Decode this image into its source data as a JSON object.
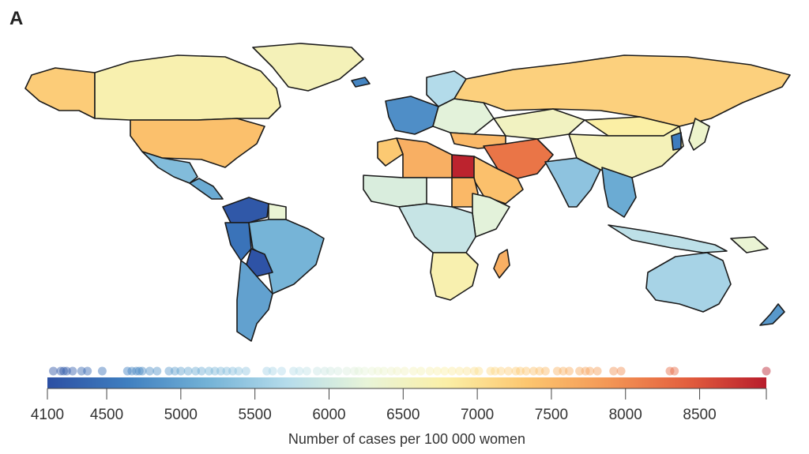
{
  "panel_label": "A",
  "legend": {
    "title": "Number of cases per 100 000 women",
    "min": 4100,
    "max": 8950,
    "ticks": [
      4100,
      4500,
      5000,
      5500,
      6000,
      6500,
      7000,
      7500,
      8000,
      8500
    ],
    "tick_labels": [
      "4100",
      "4500",
      "5000",
      "5500",
      "6000",
      "6500",
      "7000",
      "7500",
      "8000",
      "8500"
    ],
    "colors": [
      "#2c4fa3",
      "#3f7fc0",
      "#73b2d6",
      "#b5dceb",
      "#e8f4d8",
      "#fbefa6",
      "#fcc66f",
      "#f49856",
      "#e35f3e",
      "#b81d2c"
    ],
    "country_values": [
      4140,
      4190,
      4210,
      4230,
      4270,
      4330,
      4370,
      4470,
      4640,
      4670,
      4700,
      4720,
      4740,
      4790,
      4840,
      4920,
      4960,
      5000,
      5050,
      5100,
      5140,
      5190,
      5230,
      5270,
      5310,
      5350,
      5390,
      5440,
      5580,
      5620,
      5680,
      5760,
      5800,
      5850,
      5920,
      5970,
      6010,
      6060,
      6120,
      6170,
      6200,
      6240,
      6290,
      6330,
      6370,
      6420,
      6460,
      6510,
      6570,
      6620,
      6680,
      6730,
      6780,
      6830,
      6880,
      6930,
      6980,
      7010,
      7090,
      7120,
      7160,
      7210,
      7260,
      7290,
      7330,
      7380,
      7420,
      7460,
      7540,
      7580,
      7620,
      7690,
      7730,
      7760,
      7810,
      7920,
      7970,
      8300,
      8330,
      8950
    ]
  },
  "regions": [
    {
      "name": "alaska",
      "value": 7250
    },
    {
      "name": "canada",
      "value": 6700
    },
    {
      "name": "greenland",
      "value": 6600
    },
    {
      "name": "usa",
      "value": 7400
    },
    {
      "name": "mexico",
      "value": 5300
    },
    {
      "name": "central-america",
      "value": 5100
    },
    {
      "name": "colombia-venezuela",
      "value": 4200
    },
    {
      "name": "peru-andes",
      "value": 4500
    },
    {
      "name": "bolivia",
      "value": 4150
    },
    {
      "name": "brazil",
      "value": 5200
    },
    {
      "name": "chile-argentina",
      "value": 5000
    },
    {
      "name": "guianas",
      "value": 6300
    },
    {
      "name": "iceland",
      "value": 4700
    },
    {
      "name": "scandinavia",
      "value": 5700
    },
    {
      "name": "western-europe",
      "value": 4800
    },
    {
      "name": "eastern-europe",
      "value": 6200
    },
    {
      "name": "russia",
      "value": 7200
    },
    {
      "name": "kazakhstan",
      "value": 6500
    },
    {
      "name": "mongolia",
      "value": 6800
    },
    {
      "name": "china",
      "value": 6600
    },
    {
      "name": "turkey-caucasus",
      "value": 7500
    },
    {
      "name": "iran-afghanistan",
      "value": 8200
    },
    {
      "name": "arabian-peninsula",
      "value": 7400
    },
    {
      "name": "egypt",
      "value": 8900
    },
    {
      "name": "libya-algeria",
      "value": 7600
    },
    {
      "name": "morocco",
      "value": 7300
    },
    {
      "name": "west-africa",
      "value": 6100
    },
    {
      "name": "sudan",
      "value": 7500
    },
    {
      "name": "horn-of-africa",
      "value": 6200
    },
    {
      "name": "central-africa",
      "value": 5900
    },
    {
      "name": "southern-africa",
      "value": 6700
    },
    {
      "name": "madagascar",
      "value": 7600
    },
    {
      "name": "india",
      "value": 5400
    },
    {
      "name": "southeast-asia",
      "value": 5100
    },
    {
      "name": "indonesia",
      "value": 5800
    },
    {
      "name": "japan",
      "value": 6400
    },
    {
      "name": "korea",
      "value": 4600
    },
    {
      "name": "australia",
      "value": 5600
    },
    {
      "name": "new-zealand",
      "value": 4900
    },
    {
      "name": "papua",
      "value": 6300
    }
  ]
}
